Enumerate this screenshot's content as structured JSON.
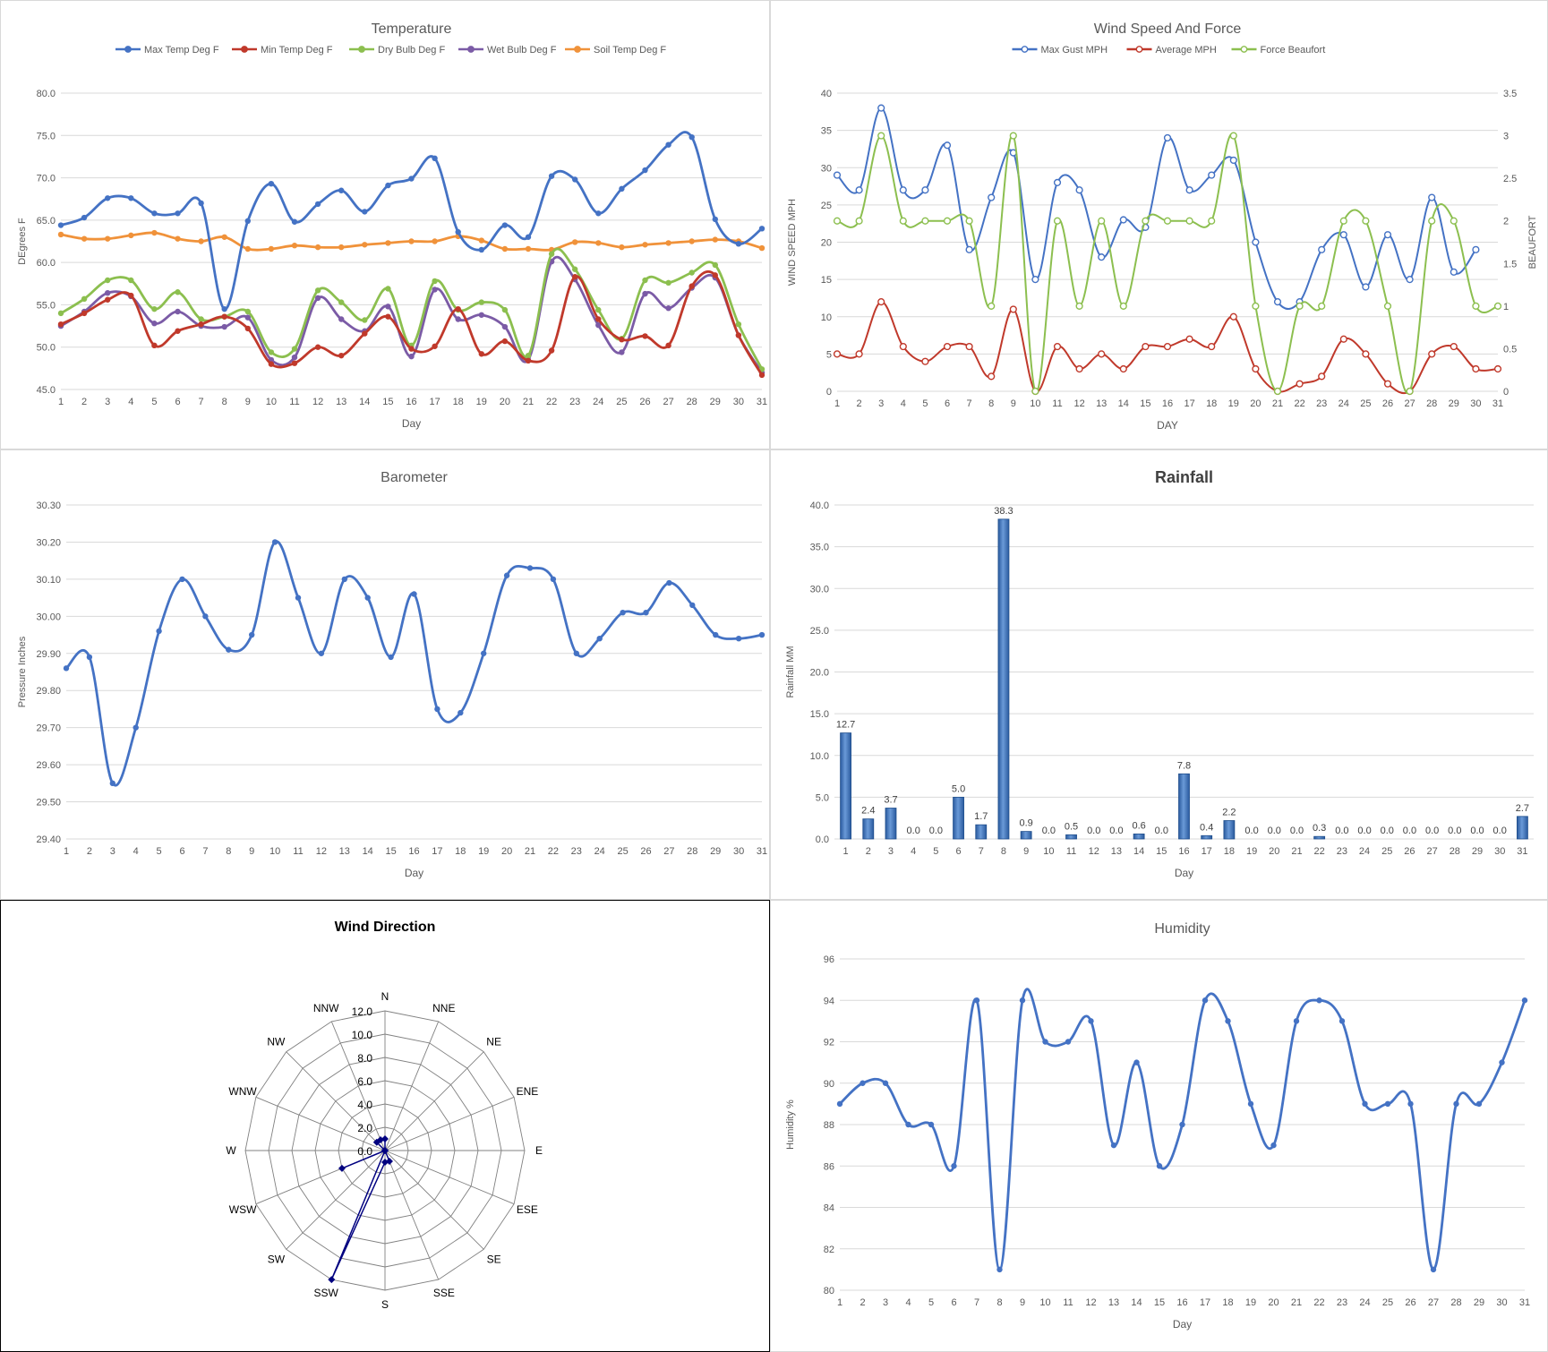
{
  "days": [
    1,
    2,
    3,
    4,
    5,
    6,
    7,
    8,
    9,
    10,
    11,
    12,
    13,
    14,
    15,
    16,
    17,
    18,
    19,
    20,
    21,
    22,
    23,
    24,
    25,
    26,
    27,
    28,
    29,
    30,
    31
  ],
  "colors": {
    "blue": "#4472C4",
    "blue_line": "#4A7EBB",
    "red": "#C0392B",
    "green": "#8CBF4F",
    "purple": "#7B5BA6",
    "orange": "#F0923A",
    "grid": "#D9D9D9",
    "text": "#595959",
    "bar_dark": "#2A5A9E",
    "bar_light": "#6A9AD8",
    "navy": "#000080"
  },
  "temperature": {
    "title": "Temperature",
    "xlabel": "Day",
    "ylabel": "DEgrees F",
    "chart_data": {
      "type": "line",
      "ylim": [
        45,
        80
      ],
      "yticks": [
        "45.0",
        "50.0",
        "55.0",
        "60.0",
        "65.0",
        "70.0",
        "75.0",
        "80.0"
      ],
      "legend": "top",
      "grid": true,
      "series": [
        {
          "name": "Max Temp Deg F",
          "color": "#4472C4",
          "values": [
            64.4,
            65.3,
            67.6,
            67.6,
            65.8,
            65.8,
            67.0,
            54.5,
            64.9,
            69.3,
            64.8,
            66.9,
            68.5,
            66.0,
            69.1,
            69.9,
            72.3,
            63.6,
            61.5,
            64.4,
            63.0,
            70.2,
            69.8,
            65.8,
            68.7,
            70.9,
            73.9,
            74.8,
            65.1,
            62.2,
            64.0
          ]
        },
        {
          "name": "Min Temp Deg F",
          "color": "#C0392B",
          "values": [
            52.7,
            54.0,
            55.6,
            56.1,
            50.2,
            51.9,
            52.7,
            53.6,
            52.2,
            48.0,
            48.1,
            50.0,
            49.0,
            51.6,
            53.6,
            49.8,
            50.1,
            54.5,
            49.2,
            50.7,
            48.4,
            49.6,
            58.3,
            53.3,
            50.9,
            51.3,
            50.2,
            57.2,
            58.5,
            51.4,
            46.7
          ]
        },
        {
          "name": "Dry Bulb Deg F",
          "color": "#8CBF4F",
          "values": [
            54.0,
            55.7,
            57.9,
            57.9,
            54.5,
            56.5,
            53.3,
            53.6,
            54.2,
            49.4,
            49.8,
            56.7,
            55.3,
            53.2,
            56.9,
            50.2,
            57.8,
            54.4,
            55.3,
            54.4,
            49.0,
            61.0,
            59.2,
            54.4,
            51.0,
            57.9,
            57.6,
            58.8,
            59.7,
            52.7,
            47.4
          ]
        },
        {
          "name": "Wet Bulb Deg F",
          "color": "#7B5BA6",
          "values": [
            52.5,
            54.2,
            56.4,
            56.0,
            52.8,
            54.2,
            52.5,
            52.4,
            53.5,
            48.5,
            48.8,
            55.8,
            53.3,
            51.9,
            54.8,
            48.9,
            56.8,
            53.3,
            53.8,
            52.4,
            48.5,
            60.1,
            58.0,
            52.6,
            49.4,
            56.3,
            54.6,
            57.0,
            58.2,
            51.4,
            47.0
          ]
        },
        {
          "name": "Soil Temp Deg F",
          "color": "#F0923A",
          "values": [
            63.3,
            62.8,
            62.8,
            63.2,
            63.5,
            62.8,
            62.5,
            63.0,
            61.6,
            61.6,
            62.0,
            61.8,
            61.8,
            62.1,
            62.3,
            62.5,
            62.5,
            63.1,
            62.6,
            61.6,
            61.6,
            61.5,
            62.4,
            62.3,
            61.8,
            62.1,
            62.3,
            62.5,
            62.7,
            62.5,
            61.7
          ]
        }
      ]
    }
  },
  "wind": {
    "title": "Wind Speed And Force",
    "xlabel": "DAY",
    "ylabel_left": "WIND SPEED MPH",
    "ylabel_right": "BEAUFORT",
    "chart_data": {
      "type": "line",
      "ylim_left": [
        0,
        40
      ],
      "ylim_right": [
        0,
        3.5
      ],
      "yticks_left": [
        "0",
        "5",
        "10",
        "15",
        "20",
        "25",
        "30",
        "35",
        "40"
      ],
      "yticks_right": [
        "0",
        "0.5",
        "1",
        "1.5",
        "2",
        "2.5",
        "3",
        "3.5"
      ],
      "legend": "top",
      "grid": true,
      "series": [
        {
          "name": "Max Gust MPH",
          "axis": "left",
          "color": "#4472C4",
          "values": [
            29,
            27,
            38,
            27,
            27,
            33,
            19,
            26,
            32,
            15,
            28,
            27,
            18,
            23,
            22,
            34,
            27,
            29,
            31,
            20,
            12,
            12,
            19,
            21,
            14,
            21,
            15,
            26,
            16,
            19,
            null
          ]
        },
        {
          "name": "Average MPH",
          "axis": "left",
          "color": "#C0392B",
          "values": [
            5,
            5,
            12,
            6,
            4,
            6,
            6,
            2,
            11,
            0,
            6,
            3,
            5,
            3,
            6,
            6,
            7,
            6,
            10,
            3,
            0,
            1,
            2,
            7,
            5,
            1,
            0,
            5,
            6,
            3,
            3
          ]
        },
        {
          "name": "Force Beaufort",
          "axis": "right",
          "color": "#8CBF4F",
          "values": [
            2,
            2,
            3,
            2,
            2,
            2,
            2,
            1,
            3,
            0,
            2,
            1,
            2,
            1,
            2,
            2,
            2,
            2,
            3,
            1,
            0,
            1,
            1,
            2,
            2,
            1,
            0,
            2,
            2,
            1,
            1
          ]
        }
      ]
    }
  },
  "barometer": {
    "title": "Barometer",
    "xlabel": "Day",
    "ylabel": "Pressure Inches",
    "chart_data": {
      "type": "line",
      "ylim": [
        29.4,
        30.3
      ],
      "yticks": [
        "29.40",
        "29.50",
        "29.60",
        "29.70",
        "29.80",
        "29.90",
        "30.00",
        "30.10",
        "30.20",
        "30.30"
      ],
      "grid": true,
      "series": [
        {
          "name": "",
          "color": "#4472C4",
          "values": [
            29.86,
            29.89,
            29.55,
            29.7,
            29.96,
            30.1,
            30.0,
            29.91,
            29.95,
            30.2,
            30.05,
            29.9,
            30.1,
            30.05,
            29.89,
            30.06,
            29.75,
            29.74,
            29.9,
            30.11,
            30.13,
            30.1,
            29.9,
            29.94,
            30.01,
            30.01,
            30.09,
            30.03,
            29.95,
            29.94,
            29.95
          ]
        }
      ]
    }
  },
  "rainfall": {
    "title": "Rainfall",
    "xlabel": "Day",
    "ylabel": "Rainfall MM",
    "chart_data": {
      "type": "bar",
      "ylim": [
        0,
        40
      ],
      "yticks": [
        "0.0",
        "5.0",
        "10.0",
        "15.0",
        "20.0",
        "25.0",
        "30.0",
        "35.0",
        "40.0"
      ],
      "grid": true,
      "values": [
        12.7,
        2.4,
        3.7,
        0.0,
        0.0,
        5.0,
        1.7,
        38.3,
        0.9,
        0.0,
        0.5,
        0.0,
        0.0,
        0.6,
        0.0,
        7.8,
        0.4,
        2.2,
        0.0,
        0.0,
        0.0,
        0.3,
        0.0,
        0.0,
        0.0,
        0.0,
        0.0,
        0.0,
        0.0,
        0.0,
        2.7
      ],
      "labels": [
        "12.7",
        "2.4",
        "3.7",
        "0.0",
        "0.0",
        "5.0",
        "1.7",
        "38.3",
        "0.9",
        "0.0",
        "0.5",
        "0.0",
        "0.0",
        "0.6",
        "0.0",
        "7.8",
        "0.4",
        "2.2",
        "0.0",
        "0.0",
        "0.0",
        "0.3",
        "0.0",
        "0.0",
        "0.0",
        "0.0",
        "0.0",
        "0.0",
        "0.0",
        "0.0",
        "2.7"
      ]
    }
  },
  "wind_direction": {
    "title": "Wind Direction",
    "chart_data": {
      "type": "radar",
      "ylim": [
        0,
        12
      ],
      "ring_labels": [
        "0.0",
        "2.0",
        "4.0",
        "6.0",
        "8.0",
        "10.0",
        "12.0"
      ],
      "directions": [
        "N",
        "NNE",
        "NE",
        "ENE",
        "E",
        "ESE",
        "SE",
        "SSE",
        "S",
        "SSW",
        "SW",
        "WSW",
        "W",
        "WNW",
        "NW",
        "NNW"
      ],
      "values": [
        1,
        0,
        0,
        0,
        0,
        0,
        0,
        1,
        1,
        12,
        0,
        4,
        0,
        0,
        1,
        1
      ],
      "color": "#000080"
    }
  },
  "humidity": {
    "title": "Humidity",
    "xlabel": "Day",
    "ylabel": "Humidity %",
    "chart_data": {
      "type": "line",
      "ylim": [
        80,
        96
      ],
      "yticks": [
        "80",
        "82",
        "84",
        "86",
        "88",
        "90",
        "92",
        "94",
        "96"
      ],
      "grid": true,
      "series": [
        {
          "name": "",
          "color": "#4472C4",
          "values": [
            89,
            90,
            90,
            88,
            88,
            86,
            94,
            81,
            94,
            92,
            92,
            93,
            87,
            91,
            86,
            88,
            94,
            93,
            89,
            87,
            93,
            94,
            93,
            89,
            89,
            89,
            81,
            89,
            89,
            91,
            94
          ]
        }
      ]
    }
  }
}
